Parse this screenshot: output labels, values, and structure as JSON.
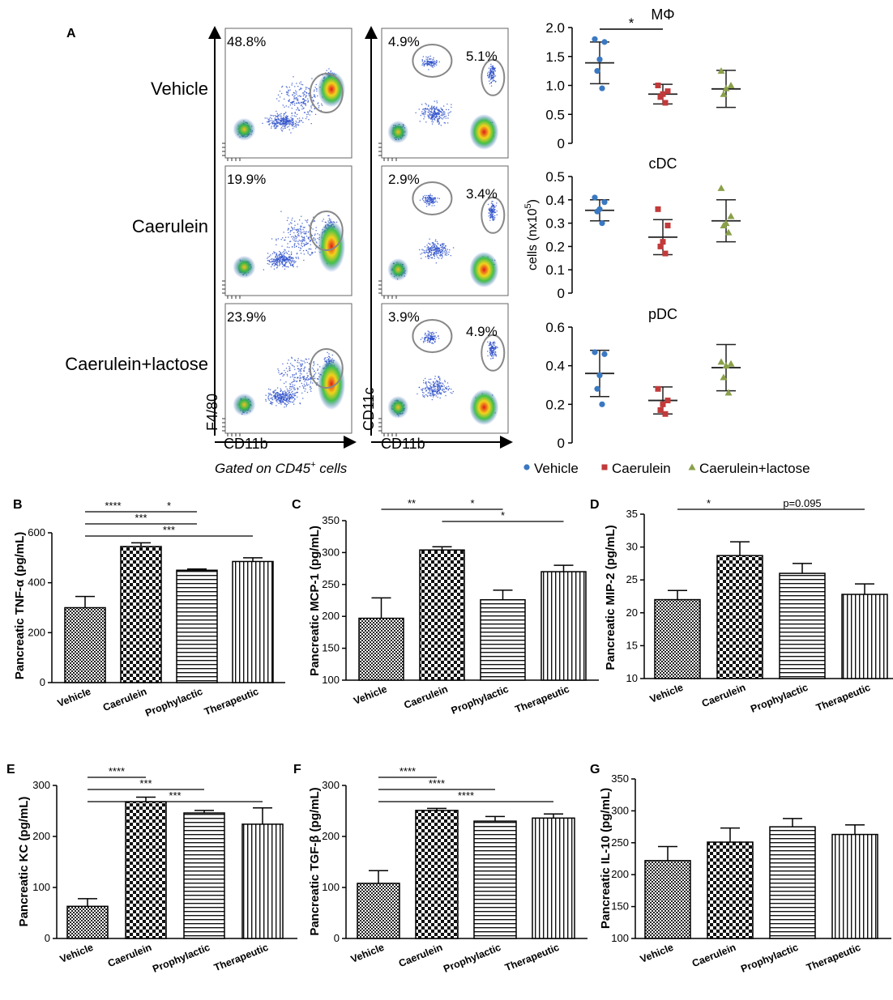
{
  "colors": {
    "vehicle": "#3a78c2",
    "caerulein": "#c23a3a",
    "lactose": "#8aa04a",
    "gate": "#888888",
    "ink": "#000000"
  },
  "chart_data": [
    {
      "id": "A-flow",
      "type": "scatter",
      "panel_label": "A",
      "row_labels": [
        "Vehicle",
        "Caerulein",
        "Caerulein+lactose"
      ],
      "f480_pct": [
        "48.8%",
        "19.9%",
        "23.9%"
      ],
      "cd11c_left_pct": [
        "4.9%",
        "2.9%",
        "3.9%"
      ],
      "cd11c_right_pct": [
        "5.1%",
        "3.4%",
        "4.9%"
      ],
      "xlabel_left": "CD11b",
      "ylabel_left": "F4/80",
      "xlabel_right": "CD11b",
      "ylabel_right": "CD11c",
      "caption": "Gated on CD45",
      "caption_sup": "+",
      "caption_tail": " cells"
    },
    {
      "id": "A-dot",
      "type": "scatter",
      "ylabel": "cells (nx10",
      "ylabel_sup": "5",
      "ylabel_tail": ")",
      "groups": [
        "Vehicle",
        "Caerulein",
        "Caerulein+lactose"
      ],
      "legend": [
        "Vehicle",
        "Caerulein",
        "Caerulein+lactose"
      ],
      "subplots": [
        {
          "title": "MΦ",
          "ylim": [
            0,
            2.0
          ],
          "ticks": [
            "0",
            "0.5",
            "1.0",
            "1.5",
            "2.0"
          ],
          "tick_values": [
            0,
            0.5,
            1.0,
            1.5,
            2.0
          ],
          "points": [
            [
              1.8,
              1.75,
              1.45,
              1.25,
              0.95
            ],
            [
              1.0,
              0.9,
              0.85,
              0.8,
              0.7
            ],
            [
              1.25,
              1.0,
              0.95,
              0.85
            ]
          ],
          "mean": [
            1.39,
            0.85,
            0.94
          ],
          "err": [
            0.36,
            0.17,
            0.32
          ],
          "sig": [
            {
              "from": 0,
              "to": 1,
              "label": "*"
            }
          ]
        },
        {
          "title": "cDC",
          "ylim": [
            0,
            0.5
          ],
          "ticks": [
            "0",
            "0.1",
            "0.2",
            "0.3",
            "0.4",
            "0.5"
          ],
          "tick_values": [
            0,
            0.1,
            0.2,
            0.3,
            0.4,
            0.5
          ],
          "points": [
            [
              0.41,
              0.39,
              0.36,
              0.35,
              0.3
            ],
            [
              0.36,
              0.29,
              0.22,
              0.2,
              0.17
            ],
            [
              0.45,
              0.33,
              0.3,
              0.29,
              0.26
            ]
          ],
          "mean": [
            0.355,
            0.24,
            0.31
          ],
          "err": [
            0.045,
            0.075,
            0.09
          ],
          "sig": []
        },
        {
          "title": "pDC",
          "ylim": [
            0,
            0.6
          ],
          "ticks": [
            "0",
            "0.2",
            "0.4",
            "0.6"
          ],
          "tick_values": [
            0,
            0.2,
            0.4,
            0.6
          ],
          "points": [
            [
              0.47,
              0.46,
              0.35,
              0.28,
              0.2
            ],
            [
              0.28,
              0.22,
              0.2,
              0.17,
              0.15
            ],
            [
              0.42,
              0.41,
              0.4,
              0.34,
              0.26
            ]
          ],
          "mean": [
            0.36,
            0.22,
            0.39
          ],
          "err": [
            0.12,
            0.07,
            0.12
          ],
          "sig": []
        }
      ]
    },
    {
      "id": "B",
      "type": "bar",
      "panel_label": "B",
      "ylabel": "Pancreatic TNF-α (pg/mL)",
      "categories": [
        "Vehicle",
        "Caerulein",
        "Prophylactic",
        "Therapeutic"
      ],
      "values": [
        300,
        545,
        450,
        485
      ],
      "errors": [
        45,
        15,
        5,
        15
      ],
      "ylim": [
        0,
        600
      ],
      "ticks": [
        "0",
        "200",
        "400",
        "600"
      ],
      "tick_values": [
        0,
        200,
        400,
        600
      ],
      "sig": [
        {
          "from": 0,
          "to": 1,
          "label": "****"
        },
        {
          "from": 1,
          "to": 2,
          "label": "*"
        },
        {
          "from": 0,
          "to": 2,
          "label": "***"
        },
        {
          "from": 0,
          "to": 3,
          "label": "***"
        }
      ]
    },
    {
      "id": "C",
      "type": "bar",
      "panel_label": "C",
      "ylabel": "Pancreatic MCP-1 (pg/mL)",
      "categories": [
        "Vehicle",
        "Caerulein",
        "Prophylactic",
        "Therapeutic"
      ],
      "values": [
        197,
        304,
        226,
        270
      ],
      "errors": [
        32,
        5,
        15,
        10
      ],
      "ylim": [
        100,
        350
      ],
      "ticks": [
        "100",
        "150",
        "200",
        "250",
        "300",
        "350"
      ],
      "tick_values": [
        100,
        150,
        200,
        250,
        300,
        350
      ],
      "sig": [
        {
          "from": 0,
          "to": 1,
          "label": "**"
        },
        {
          "from": 1,
          "to": 2,
          "label": "*"
        },
        {
          "from": 1,
          "to": 3,
          "label": "*"
        }
      ]
    },
    {
      "id": "D",
      "type": "bar",
      "panel_label": "D",
      "ylabel": "Pancreatic MIP-2 (pg/mL)",
      "categories": [
        "Vehicle",
        "Caerulein",
        "Prophylactic",
        "Therapeutic"
      ],
      "values": [
        22,
        28.7,
        26,
        22.8
      ],
      "errors": [
        1.4,
        2.1,
        1.5,
        1.6
      ],
      "ylim": [
        10,
        35
      ],
      "ticks": [
        "10",
        "15",
        "20",
        "25",
        "30",
        "35"
      ],
      "tick_values": [
        10,
        15,
        20,
        25,
        30,
        35
      ],
      "sig": [
        {
          "from": 0,
          "to": 1,
          "label": "*"
        },
        {
          "from": 1,
          "to": 3,
          "label": "p=0.095"
        }
      ]
    },
    {
      "id": "E",
      "type": "bar",
      "panel_label": "E",
      "ylabel": "Pancreatic KC (pg/mL)",
      "categories": [
        "Vehicle",
        "Caerulein",
        "Prophylactic",
        "Therapeutic"
      ],
      "values": [
        63,
        268,
        246,
        224
      ],
      "errors": [
        15,
        9,
        5,
        32
      ],
      "ylim": [
        0,
        300
      ],
      "ticks": [
        "0",
        "100",
        "200",
        "300"
      ],
      "tick_values": [
        0,
        100,
        200,
        300
      ],
      "sig": [
        {
          "from": 0,
          "to": 1,
          "label": "****"
        },
        {
          "from": 0,
          "to": 2,
          "label": "***"
        },
        {
          "from": 0,
          "to": 3,
          "label": "***"
        }
      ]
    },
    {
      "id": "F",
      "type": "bar",
      "panel_label": "F",
      "ylabel": "Pancreatic TGF-β (pg/mL)",
      "categories": [
        "Vehicle",
        "Caerulein",
        "Prophylactic",
        "Therapeutic"
      ],
      "values": [
        108,
        251,
        230,
        236
      ],
      "errors": [
        25,
        4,
        9,
        8
      ],
      "ylim": [
        0,
        300
      ],
      "ticks": [
        "0",
        "100",
        "200",
        "300"
      ],
      "tick_values": [
        0,
        100,
        200,
        300
      ],
      "sig": [
        {
          "from": 0,
          "to": 1,
          "label": "****"
        },
        {
          "from": 0,
          "to": 2,
          "label": "****"
        },
        {
          "from": 0,
          "to": 3,
          "label": "****"
        }
      ]
    },
    {
      "id": "G",
      "type": "bar",
      "panel_label": "G",
      "ylabel": "Pancreatic IL-10 (pg/mL)",
      "categories": [
        "Vehicle",
        "Caerulein",
        "Prophylactic",
        "Therapeutic"
      ],
      "values": [
        222,
        251,
        275,
        263
      ],
      "errors": [
        22,
        22,
        13,
        15
      ],
      "ylim": [
        100,
        350
      ],
      "ticks": [
        "100",
        "150",
        "200",
        "250",
        "300",
        "350"
      ],
      "tick_values": [
        100,
        150,
        200,
        250,
        300,
        350
      ],
      "sig": []
    }
  ]
}
